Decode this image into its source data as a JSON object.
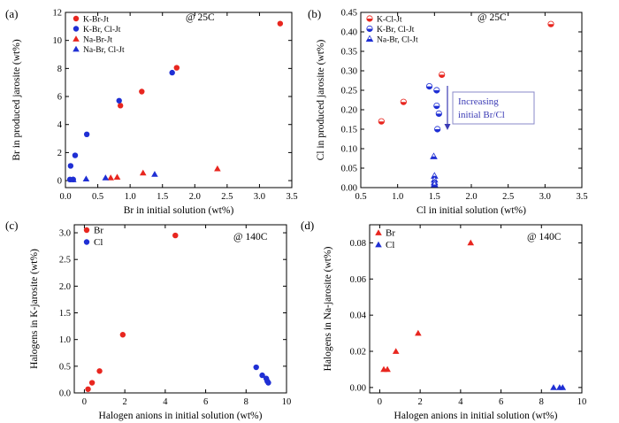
{
  "colors": {
    "red": "#e8261f",
    "blue": "#1f2fd4",
    "annot_border": "#8a8ac8",
    "annot_text": "#3b3bb5"
  },
  "chart_data": [
    {
      "id": "a",
      "type": "scatter",
      "panel_label": "(a)",
      "condition": "@ 25C",
      "xlabel": "Br in initial solution (wt%)",
      "ylabel": "Br in produced jarosite (wt%)",
      "xlim": [
        0,
        3.5
      ],
      "ylim": [
        -0.5,
        12
      ],
      "xticks": [
        0.0,
        0.5,
        1.0,
        1.5,
        2.0,
        2.5,
        3.0,
        3.5
      ],
      "yticks": [
        0,
        2,
        4,
        6,
        8,
        10,
        12
      ],
      "tick_format": {
        "x": "0.0",
        "y": "0"
      },
      "legend_position": "top-left",
      "series": [
        {
          "name": "K-Br-Jt",
          "marker": "circle",
          "color": "red",
          "points": [
            [
              3.32,
              11.2
            ],
            [
              1.72,
              8.05
            ],
            [
              1.18,
              6.35
            ],
            [
              0.85,
              5.35
            ]
          ]
        },
        {
          "name": "K-Br, Cl-Jt",
          "marker": "circle",
          "color": "blue",
          "points": [
            [
              1.65,
              7.7
            ],
            [
              0.83,
              5.7
            ],
            [
              0.33,
              3.3
            ],
            [
              0.15,
              1.8
            ],
            [
              0.08,
              1.05
            ],
            [
              0.07,
              0.08
            ],
            [
              0.12,
              0.08
            ]
          ]
        },
        {
          "name": "Na-Br-Jt",
          "marker": "triangle",
          "color": "red",
          "points": [
            [
              2.35,
              0.85
            ],
            [
              1.2,
              0.55
            ],
            [
              0.8,
              0.25
            ],
            [
              0.7,
              0.2
            ]
          ]
        },
        {
          "name": "Na-Br, Cl-Jt",
          "marker": "triangle",
          "color": "blue",
          "points": [
            [
              1.38,
              0.45
            ],
            [
              0.62,
              0.2
            ],
            [
              0.32,
              0.12
            ],
            [
              0.12,
              0.07
            ]
          ]
        }
      ]
    },
    {
      "id": "b",
      "type": "scatter",
      "panel_label": "(b)",
      "condition": "@ 25C",
      "xlabel": "Cl in initial solution (wt%)",
      "ylabel": "Cl in produced jarosite (wt%)",
      "xlim": [
        0.5,
        3.5
      ],
      "ylim": [
        0,
        0.45
      ],
      "xticks": [
        0.5,
        1.0,
        1.5,
        2.0,
        2.5,
        3.0,
        3.5
      ],
      "yticks": [
        0.0,
        0.05,
        0.1,
        0.15,
        0.2,
        0.25,
        0.3,
        0.35,
        0.4,
        0.45
      ],
      "tick_format": {
        "x": "0.0",
        "y": "0.00"
      },
      "legend_position": "top-left",
      "annotation": {
        "line1": "Increasing",
        "line2": "initial Br/Cl"
      },
      "series": [
        {
          "name": "K-Cl-Jt",
          "marker": "half-circle",
          "color": "red",
          "points": [
            [
              3.08,
              0.42
            ],
            [
              1.6,
              0.29
            ],
            [
              1.08,
              0.22
            ],
            [
              0.78,
              0.17
            ]
          ]
        },
        {
          "name": "K-Br, Cl-Jt",
          "marker": "half-circle",
          "color": "blue",
          "points": [
            [
              1.43,
              0.26
            ],
            [
              1.53,
              0.25
            ],
            [
              1.53,
              0.21
            ],
            [
              1.56,
              0.19
            ],
            [
              1.54,
              0.15
            ]
          ]
        },
        {
          "name": "Na-Br, Cl-Jt",
          "marker": "half-triangle",
          "color": "blue",
          "points": [
            [
              1.49,
              0.08
            ],
            [
              1.5,
              0.03
            ],
            [
              1.5,
              0.02
            ],
            [
              1.5,
              0.013
            ],
            [
              1.5,
              0.008
            ]
          ]
        }
      ]
    },
    {
      "id": "c",
      "type": "scatter",
      "panel_label": "(c)",
      "condition": "@ 140C",
      "xlabel": "Halogen anions in initial solution (wt%)",
      "ylabel": "Halogens in K-jarosite (wt%)",
      "xlim": [
        -0.5,
        10
      ],
      "ylim": [
        0,
        3.15
      ],
      "xticks": [
        0,
        2,
        4,
        6,
        8,
        10
      ],
      "yticks": [
        0.0,
        0.5,
        1.0,
        1.5,
        2.0,
        2.5,
        3.0
      ],
      "tick_format": {
        "x": "0",
        "y": "0.0"
      },
      "legend_position": "top-left",
      "series": [
        {
          "name": "Br",
          "marker": "circle",
          "color": "red",
          "points": [
            [
              4.5,
              2.95
            ],
            [
              1.9,
              1.09
            ],
            [
              0.75,
              0.41
            ],
            [
              0.38,
              0.19
            ],
            [
              0.18,
              0.07
            ]
          ]
        },
        {
          "name": "Cl",
          "marker": "circle",
          "color": "blue",
          "points": [
            [
              8.5,
              0.48
            ],
            [
              8.8,
              0.33
            ],
            [
              9.0,
              0.27
            ],
            [
              9.05,
              0.22
            ],
            [
              9.1,
              0.19
            ]
          ]
        }
      ]
    },
    {
      "id": "d",
      "type": "scatter",
      "panel_label": "(d)",
      "condition": "@ 140C",
      "xlabel": "Halogen anions in initial solution (wt%)",
      "ylabel": "Halogens in Na-jarosite (wt%)",
      "xlim": [
        -0.5,
        10
      ],
      "ylim": [
        -0.003,
        0.09
      ],
      "xticks": [
        0,
        2,
        4,
        6,
        8,
        10
      ],
      "yticks": [
        0.0,
        0.02,
        0.04,
        0.06,
        0.08
      ],
      "tick_format": {
        "x": "0",
        "y": "0.00"
      },
      "legend_position": "top-left",
      "series": [
        {
          "name": "Br",
          "marker": "triangle",
          "color": "red",
          "points": [
            [
              4.5,
              0.08
            ],
            [
              1.9,
              0.03
            ],
            [
              0.8,
              0.02
            ],
            [
              0.38,
              0.01
            ],
            [
              0.2,
              0.01
            ]
          ]
        },
        {
          "name": "Cl",
          "marker": "triangle",
          "color": "blue",
          "points": [
            [
              8.6,
              0.0
            ],
            [
              8.9,
              0.0
            ],
            [
              9.05,
              0.0
            ]
          ]
        }
      ]
    }
  ]
}
